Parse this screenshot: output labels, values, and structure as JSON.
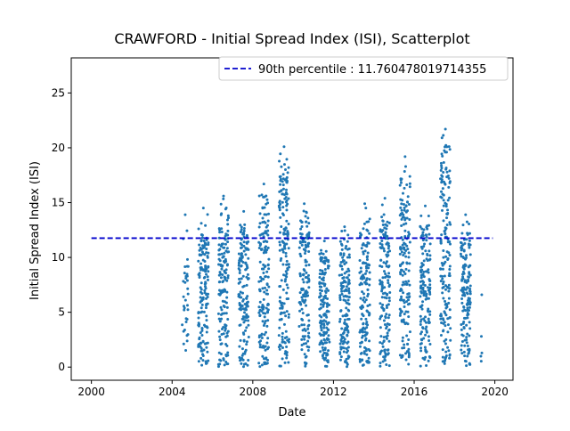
{
  "chart_data": {
    "type": "scatter",
    "title": "CRAWFORD - Initial Spread Index (ISI), Scatterplot",
    "xlabel": "Date",
    "ylabel": "Initial Spread Index (ISI)",
    "xlim": [
      1999.0,
      2020.9
    ],
    "ylim": [
      -1.2,
      28.2
    ],
    "x_ticks": [
      2000,
      2004,
      2008,
      2012,
      2016,
      2020
    ],
    "x_tick_labels": [
      "2000",
      "2004",
      "2008",
      "2012",
      "2016",
      "2020"
    ],
    "y_ticks": [
      0,
      5,
      10,
      15,
      20,
      25
    ],
    "y_tick_labels": [
      "0",
      "5",
      "10",
      "15",
      "20",
      "25"
    ],
    "legend_position": "top-right",
    "reference_line": {
      "label": "90th percentile : 11.760478019714355",
      "value": 11.760478019714355,
      "x_range": [
        2000.0,
        2019.9
      ],
      "color": "#0000cc",
      "style": "dashed"
    },
    "series": [
      {
        "color": "#1f77b4",
        "season_clusters": [
          {
            "x_range": [
              2004.5,
              2004.8
            ],
            "y_max": 13.9,
            "count": 35
          },
          {
            "x_range": [
              2005.3,
              2005.8
            ],
            "y_max": 14.5,
            "count": 150
          },
          {
            "x_range": [
              2006.3,
              2006.8
            ],
            "y_max": 15.6,
            "count": 150
          },
          {
            "x_range": [
              2007.3,
              2007.8
            ],
            "y_max": 14.2,
            "count": 150
          },
          {
            "x_range": [
              2008.3,
              2008.8
            ],
            "y_max": 16.7,
            "count": 150
          },
          {
            "x_range": [
              2009.3,
              2009.8
            ],
            "y_max": 20.1,
            "count": 170
          },
          {
            "x_range": [
              2010.3,
              2010.8
            ],
            "y_max": 14.9,
            "count": 150
          },
          {
            "x_range": [
              2011.3,
              2011.8
            ],
            "y_max": 11.5,
            "count": 150
          },
          {
            "x_range": [
              2012.3,
              2012.8
            ],
            "y_max": 12.8,
            "count": 150
          },
          {
            "x_range": [
              2013.3,
              2013.8
            ],
            "y_max": 14.9,
            "count": 150
          },
          {
            "x_range": [
              2014.3,
              2014.8
            ],
            "y_max": 15.4,
            "count": 150
          },
          {
            "x_range": [
              2015.3,
              2015.8
            ],
            "y_max": 19.2,
            "count": 160
          },
          {
            "x_range": [
              2016.3,
              2016.8
            ],
            "y_max": 14.7,
            "count": 150
          },
          {
            "x_range": [
              2017.3,
              2017.8
            ],
            "y_max": 21.7,
            "count": 170
          },
          {
            "x_range": [
              2018.3,
              2018.8
            ],
            "y_max": 13.9,
            "count": 150
          },
          {
            "x_range": [
              2019.3,
              2019.4
            ],
            "y_max": 6.6,
            "count": 5
          }
        ]
      }
    ]
  }
}
